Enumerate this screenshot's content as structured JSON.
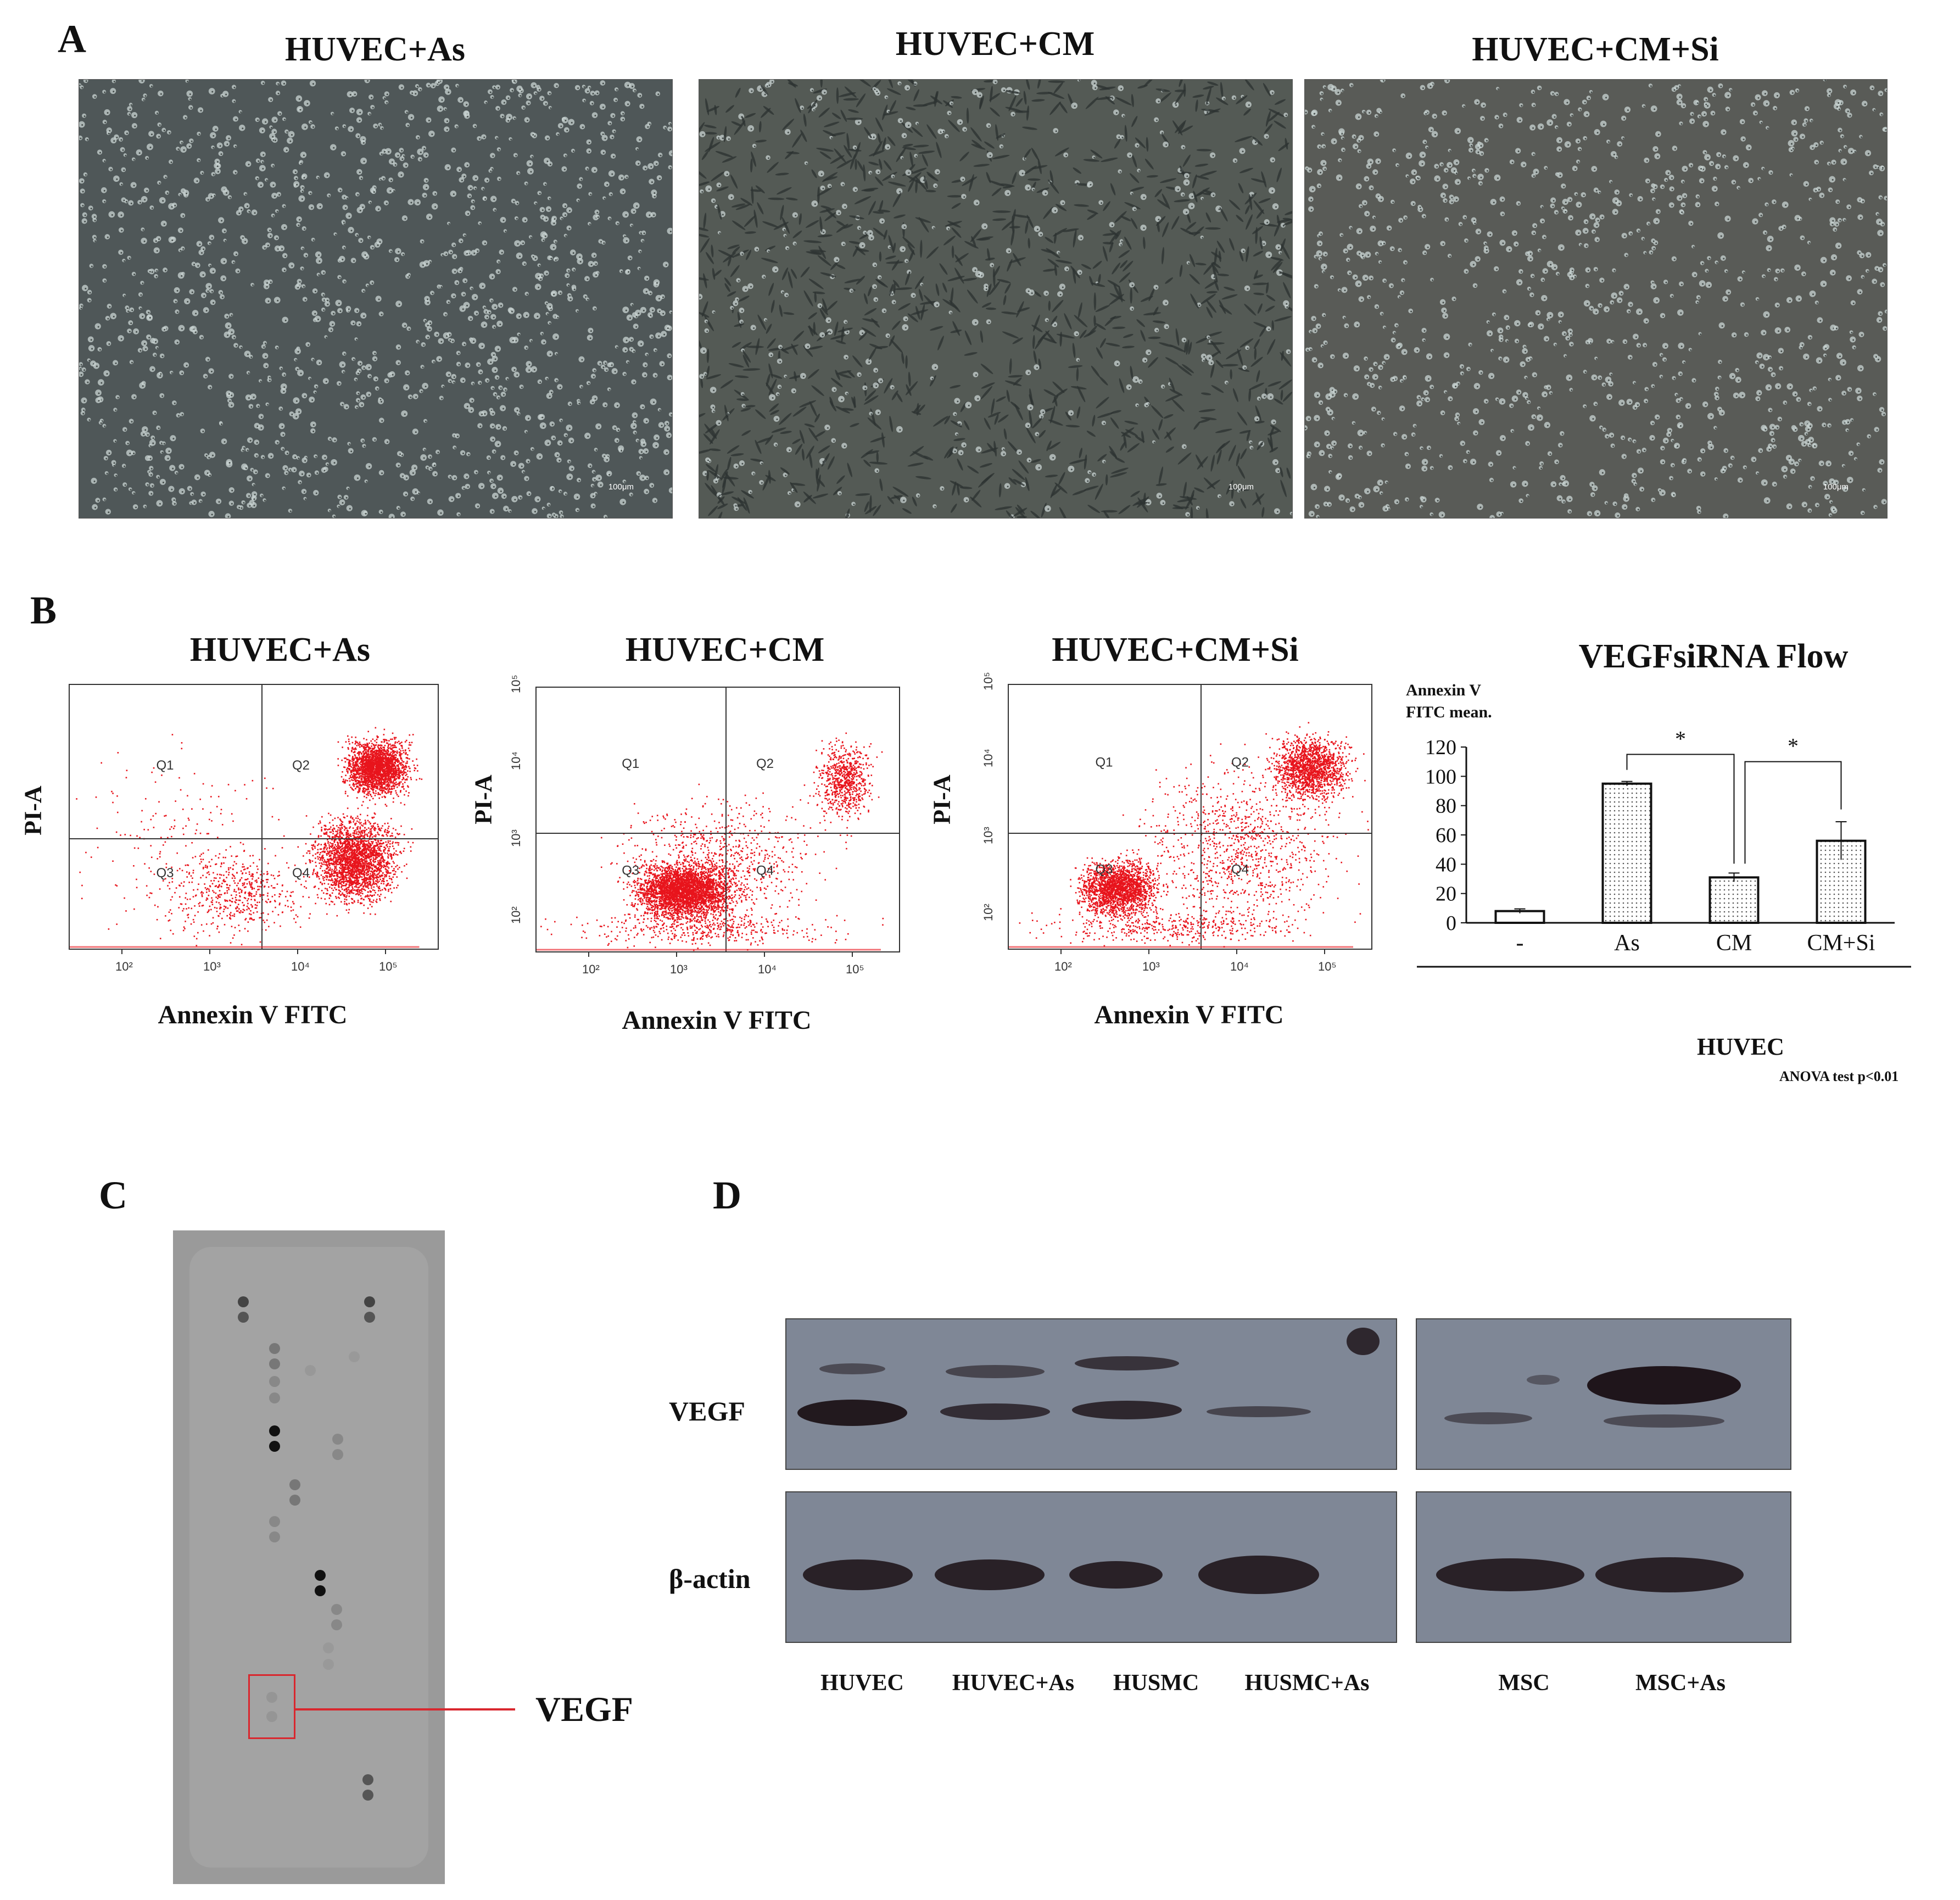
{
  "panels": {
    "a": {
      "letter": "A",
      "images": [
        {
          "title": "HUVEC+As",
          "scale": "100μm"
        },
        {
          "title": "HUVEC+CM",
          "scale": "100μm"
        },
        {
          "title": "HUVEC+CM+Si",
          "scale": "100μm"
        }
      ]
    },
    "b": {
      "letter": "B",
      "plots": [
        {
          "title": "HUVEC+As",
          "xlabel": "Annexin V FITC",
          "ylabel": "PI-A",
          "q1": "Q1",
          "q2": "Q2",
          "q3": "Q3",
          "q4": "Q4"
        },
        {
          "title": "HUVEC+CM",
          "xlabel": "Annexin V FITC",
          "ylabel": "PI-A",
          "q1": "Q1",
          "q2": "Q2",
          "q3": "Q3",
          "q4": "Q4"
        },
        {
          "title": "HUVEC+CM+Si",
          "xlabel": "Annexin V FITC",
          "ylabel": "PI-A",
          "q1": "Q1",
          "q2": "Q2",
          "q3": "Q3",
          "q4": "Q4"
        }
      ],
      "x_ticks": [
        "10²",
        "10³",
        "10⁴",
        "10⁵"
      ],
      "y_ticks": [
        "10²",
        "10³",
        "10⁴",
        "10⁵"
      ]
    },
    "c": {
      "letter": "C",
      "label": "VEGF"
    },
    "d": {
      "letter": "D",
      "rows": [
        "VEGF",
        "β-actin"
      ],
      "lanes": [
        "HUVEC",
        "HUVEC+As",
        "HUSMC",
        "HUSMC+As",
        "MSC",
        "MSC+As"
      ]
    }
  },
  "chart_data": {
    "type": "bar",
    "title": "VEGFsiRNA Flow",
    "ylabel_line1": "Annexin V",
    "ylabel_line2": "FITC mean.",
    "categories": [
      "-",
      "As",
      "CM",
      "CM+Si"
    ],
    "values": [
      8,
      95,
      31,
      56
    ],
    "errors": [
      1.5,
      1.5,
      3,
      13
    ],
    "ylim": [
      0,
      120
    ],
    "yticks": [
      0,
      20,
      40,
      60,
      80,
      100,
      120
    ],
    "group_label": "HUVEC",
    "significance_marker": "*",
    "footnote": "ANOVA test p<0.01"
  },
  "colors": {
    "dots": "#e8141c",
    "bar_border": "#111111",
    "box_red": "#d9272e"
  }
}
